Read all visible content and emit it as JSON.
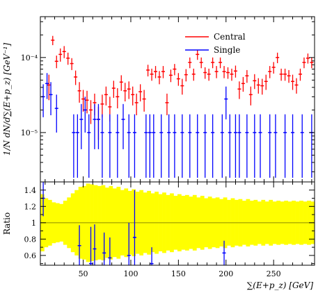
{
  "chart_data": [
    {
      "type": "line",
      "panel": "main",
      "ylabel": "1/N dN/d∑(E+p_z) [GeV⁻¹]",
      "yscale": "log",
      "ylim": [
        2.2e-06,
        0.00035
      ],
      "xlim": [
        5,
        293
      ],
      "yticks": [
        {
          "value": 1e-05,
          "label": "10⁻⁵"
        },
        {
          "value": 0.0001,
          "label": "10⁻⁴"
        }
      ],
      "legend": {
        "position": "top-right",
        "entries": [
          {
            "label": "Central",
            "color": "#ff0000"
          },
          {
            "label": "Single",
            "color": "#0000ff"
          }
        ]
      },
      "series": [
        {
          "name": "Central",
          "color": "#ff0000",
          "points": [
            [
              14,
              4.3e-05,
              1.6e-05
            ],
            [
              18,
              0.00017,
              2.4e-05
            ],
            [
              22,
              8.9e-05,
              1.7e-05
            ],
            [
              26,
              0.00011,
              2.2e-05
            ],
            [
              30,
              0.00012,
              2.2e-05
            ],
            [
              34,
              9.8e-05,
              1.8e-05
            ],
            [
              38,
              8.3e-05,
              1.5e-05
            ],
            [
              42,
              5.5e-05,
              1.2e-05
            ],
            [
              46,
              3.6e-05,
              1.1e-05
            ],
            [
              50,
              2.8e-05,
              9e-06
            ],
            [
              54,
              2.7e-05,
              9e-06
            ],
            [
              58,
              2e-05,
              7e-06
            ],
            [
              62,
              2.5e-05,
              8e-06
            ],
            [
              66,
              1.5e-05,
              7e-06
            ],
            [
              70,
              2.4e-05,
              8e-06
            ],
            [
              74,
              3.2e-05,
              9e-06
            ],
            [
              78,
              2.2e-05,
              8e-06
            ],
            [
              82,
              3.9e-05,
              1e-05
            ],
            [
              86,
              3e-05,
              9e-06
            ],
            [
              90,
              4.7e-05,
              1.1e-05
            ],
            [
              94,
              3.6e-05,
              1e-05
            ],
            [
              98,
              3.8e-05,
              1e-05
            ],
            [
              102,
              3.2e-05,
              9e-06
            ],
            [
              106,
              2.5e-05,
              8e-06
            ],
            [
              110,
              3.5e-05,
              9e-06
            ],
            [
              114,
              2.8e-05,
              9e-06
            ],
            [
              118,
              6.8e-05,
              1.2e-05
            ],
            [
              122,
              6e-05,
              1.1e-05
            ],
            [
              126,
              6.5e-05,
              1.2e-05
            ],
            [
              130,
              5.5e-05,
              1.1e-05
            ],
            [
              134,
              6.5e-05,
              1.2e-05
            ],
            [
              138,
              2.5e-05,
              8e-06
            ],
            [
              142,
              5.8e-05,
              1.1e-05
            ],
            [
              146,
              7e-05,
              1.2e-05
            ],
            [
              150,
              5.2e-05,
              1e-05
            ],
            [
              154,
              4.2e-05,
              1e-05
            ],
            [
              158,
              5.9e-05,
              1.1e-05
            ],
            [
              162,
              8.6e-05,
              1.4e-05
            ],
            [
              166,
              6e-05,
              1.1e-05
            ],
            [
              170,
              0.00011,
              1.7e-05
            ],
            [
              174,
              8.6e-05,
              1.4e-05
            ],
            [
              178,
              6.3e-05,
              1.1e-05
            ],
            [
              182,
              6e-05,
              1.1e-05
            ],
            [
              186,
              8.6e-05,
              1.4e-05
            ],
            [
              190,
              6.5e-05,
              1.2e-05
            ],
            [
              194,
              8.6e-05,
              1.4e-05
            ],
            [
              198,
              6.5e-05,
              1.2e-05
            ],
            [
              202,
              6.3e-05,
              1.1e-05
            ],
            [
              206,
              6e-05,
              1.1e-05
            ],
            [
              210,
              6.6e-05,
              1.2e-05
            ],
            [
              214,
              3.8e-05,
              1e-05
            ],
            [
              218,
              4.5e-05,
              1e-05
            ],
            [
              222,
              5.7e-05,
              1.1e-05
            ],
            [
              226,
              3.2e-05,
              9e-06
            ],
            [
              230,
              4.9e-05,
              1.1e-05
            ],
            [
              234,
              4.3e-05,
              1e-05
            ],
            [
              238,
              4.2e-05,
              1e-05
            ],
            [
              242,
              4.8e-05,
              1.1e-05
            ],
            [
              246,
              6.5e-05,
              1.2e-05
            ],
            [
              250,
              7.4e-05,
              1.3e-05
            ],
            [
              254,
              0.0001,
              1.6e-05
            ],
            [
              258,
              6e-05,
              1.1e-05
            ],
            [
              262,
              6e-05,
              1.1e-05
            ],
            [
              266,
              5.7e-05,
              1.1e-05
            ],
            [
              270,
              4.8e-05,
              1.1e-05
            ],
            [
              274,
              4.3e-05,
              1e-05
            ],
            [
              278,
              6e-05,
              1.1e-05
            ],
            [
              282,
              8.6e-05,
              1.4e-05
            ],
            [
              286,
              9.8e-05,
              1.5e-05
            ],
            [
              290,
              8.6e-05,
              1.4e-05
            ]
          ]
        },
        {
          "name": "Single",
          "color": "#0000ff",
          "points": [
            [
              8,
              3e-05,
              1.4e-05
            ],
            [
              12,
              4.5e-05,
              1.7e-05
            ],
            [
              16,
              3.2e-05,
              1.5e-05
            ],
            [
              22,
              2.1e-05,
              1.1e-05
            ],
            [
              40,
              1e-05,
              7.5e-06
            ],
            [
              44,
              1e-05,
              7.5e-06
            ],
            [
              48,
              1.5e-05,
              9e-06
            ],
            [
              52,
              2e-05,
              1e-05
            ],
            [
              56,
              1e-05,
              7.5e-06
            ],
            [
              62,
              1.5e-05,
              9e-06
            ],
            [
              66,
              1.5e-05,
              9e-06
            ],
            [
              70,
              1e-05,
              7.5e-06
            ],
            [
              78,
              1e-05,
              7.5e-06
            ],
            [
              86,
              1e-05,
              7.5e-06
            ],
            [
              92,
              1.5e-05,
              9e-06
            ],
            [
              98,
              1e-05,
              7.5e-06
            ],
            [
              104,
              1e-05,
              7.5e-06
            ],
            [
              116,
              1e-05,
              7.5e-06
            ],
            [
              120,
              1e-05,
              7.5e-06
            ],
            [
              124,
              1e-05,
              7.5e-06
            ],
            [
              132,
              1e-05,
              7.5e-06
            ],
            [
              140,
              1e-05,
              7.5e-06
            ],
            [
              146,
              1e-05,
              7.5e-06
            ],
            [
              154,
              1e-05,
              7.5e-06
            ],
            [
              162,
              1e-05,
              7.5e-06
            ],
            [
              170,
              1e-05,
              7.5e-06
            ],
            [
              178,
              1e-05,
              7.5e-06
            ],
            [
              186,
              1e-05,
              7.5e-06
            ],
            [
              196,
              1e-05,
              7.5e-06
            ],
            [
              200,
              2.8e-05,
              1.3e-05
            ],
            [
              204,
              1e-05,
              7.5e-06
            ],
            [
              210,
              1e-05,
              7.5e-06
            ],
            [
              214,
              1e-05,
              7.5e-06
            ],
            [
              222,
              1e-05,
              7.5e-06
            ],
            [
              230,
              1e-05,
              7.5e-06
            ],
            [
              236,
              1e-05,
              7.5e-06
            ],
            [
              246,
              1e-05,
              7.5e-06
            ],
            [
              252,
              1e-05,
              7.5e-06
            ],
            [
              262,
              1e-05,
              7.5e-06
            ],
            [
              270,
              1e-05,
              7.5e-06
            ],
            [
              280,
              1e-05,
              7.5e-06
            ],
            [
              290,
              1e-05,
              7.5e-06
            ]
          ]
        }
      ]
    },
    {
      "type": "line",
      "panel": "ratio",
      "xlabel": "∑(E+p_z) [GeV]",
      "ylabel": "Ratio",
      "xlim": [
        5,
        293
      ],
      "ylim": [
        0.48,
        1.5
      ],
      "xticks": [
        50,
        100,
        150,
        200,
        250
      ],
      "yticks": [
        {
          "value": 0.6,
          "label": "0.6"
        },
        {
          "value": 0.8,
          "label": "0.8"
        },
        {
          "value": 1.0,
          "label": "1"
        },
        {
          "value": 1.2,
          "label": "1.2"
        },
        {
          "value": 1.4,
          "label": "1.4"
        }
      ],
      "reference_line": 1.0,
      "band_color": "#ffff00",
      "band_halfwidth": [
        0.35,
        0.3,
        0.28,
        0.25,
        0.24,
        0.23,
        0.27,
        0.31,
        0.36,
        0.4,
        0.44,
        0.45,
        0.48,
        0.47,
        0.46,
        0.45,
        0.46,
        0.43,
        0.45,
        0.42,
        0.44,
        0.4,
        0.42,
        0.39,
        0.41,
        0.38,
        0.4,
        0.37,
        0.39,
        0.36,
        0.38,
        0.35,
        0.37,
        0.34,
        0.36,
        0.33,
        0.35,
        0.33,
        0.34,
        0.32,
        0.34,
        0.31,
        0.33,
        0.3,
        0.32,
        0.3,
        0.31,
        0.29,
        0.31,
        0.28,
        0.3,
        0.28,
        0.29,
        0.27,
        0.29,
        0.27,
        0.28,
        0.26,
        0.28,
        0.26,
        0.28,
        0.26,
        0.27,
        0.26,
        0.27,
        0.26,
        0.27,
        0.26,
        0.27,
        0.26,
        0.27,
        0.26
      ],
      "series": [
        {
          "name": "Single",
          "color": "#0000ff",
          "points": [
            [
              8,
              1.3,
              0.22
            ],
            [
              46,
              0.72,
              0.25
            ],
            [
              58,
              0.5,
              0.45
            ],
            [
              62,
              0.68,
              0.3
            ],
            [
              72,
              0.63,
              0.25
            ],
            [
              78,
              0.57,
              0.25
            ],
            [
              98,
              0.6,
              0.4
            ],
            [
              104,
              0.82,
              0.58
            ],
            [
              122,
              0.5,
              0.2
            ],
            [
              198,
              0.63,
              0.15
            ]
          ]
        }
      ]
    }
  ]
}
